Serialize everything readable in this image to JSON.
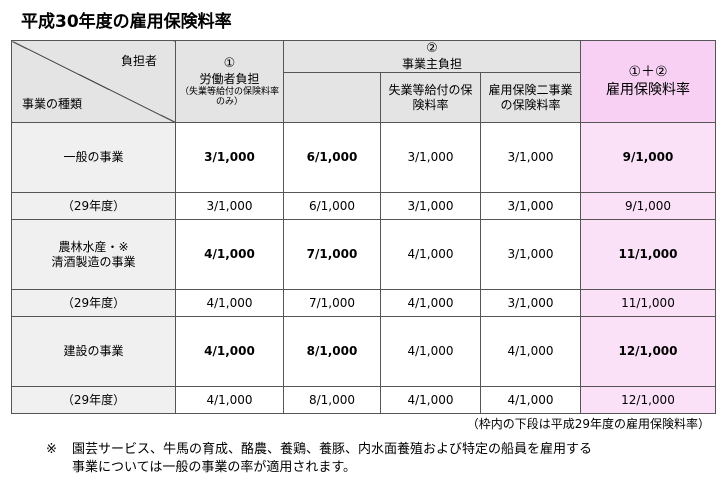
{
  "title": "平成30年度の雇用保険料率",
  "header": {
    "burden_label": "負担者",
    "kind_label": "事業の種類",
    "worker": {
      "num": "①",
      "label": "労働者負担",
      "sub": "（失業等給付の保険料率のみ）"
    },
    "employer": {
      "num": "②",
      "label": "事業主負担"
    },
    "employer_sub1": "失業等給付の保険料率",
    "employer_sub2": "雇用保険二事業の保険料率",
    "total": {
      "num": "①＋②",
      "label": "雇用保険料率"
    }
  },
  "rows": [
    {
      "name": "一般の事業",
      "current": {
        "worker": "3/1,000",
        "employer": "6/1,000",
        "unemp": "3/1,000",
        "twoproj": "3/1,000",
        "total": "9/1,000"
      },
      "prev_label": "（29年度）",
      "prev": {
        "worker": "3/1,000",
        "employer": "6/1,000",
        "unemp": "3/1,000",
        "twoproj": "3/1,000",
        "total": "9/1,000"
      }
    },
    {
      "name_line1": "農林水産・※",
      "name_line2": "清酒製造の事業",
      "current": {
        "worker": "4/1,000",
        "employer": "7/1,000",
        "unemp": "4/1,000",
        "twoproj": "3/1,000",
        "total": "11/1,000"
      },
      "prev_label": "（29年度）",
      "prev": {
        "worker": "4/1,000",
        "employer": "7/1,000",
        "unemp": "4/1,000",
        "twoproj": "3/1,000",
        "total": "11/1,000"
      }
    },
    {
      "name": "建設の事業",
      "current": {
        "worker": "4/1,000",
        "employer": "8/1,000",
        "unemp": "4/1,000",
        "twoproj": "4/1,000",
        "total": "12/1,000"
      },
      "prev_label": "（29年度）",
      "prev": {
        "worker": "4/1,000",
        "employer": "8/1,000",
        "unemp": "4/1,000",
        "twoproj": "4/1,000",
        "total": "12/1,000"
      }
    }
  ],
  "note_right": "（枠内の下段は平成29年度の雇用保険料率）",
  "footnote": {
    "mark": "※",
    "line1": "園芸サービス、牛馬の育成、酪農、養鶏、養豚、内水面養殖および特定の船員を雇用する",
    "line2": "事業については一般の事業の率が適用されます。"
  }
}
